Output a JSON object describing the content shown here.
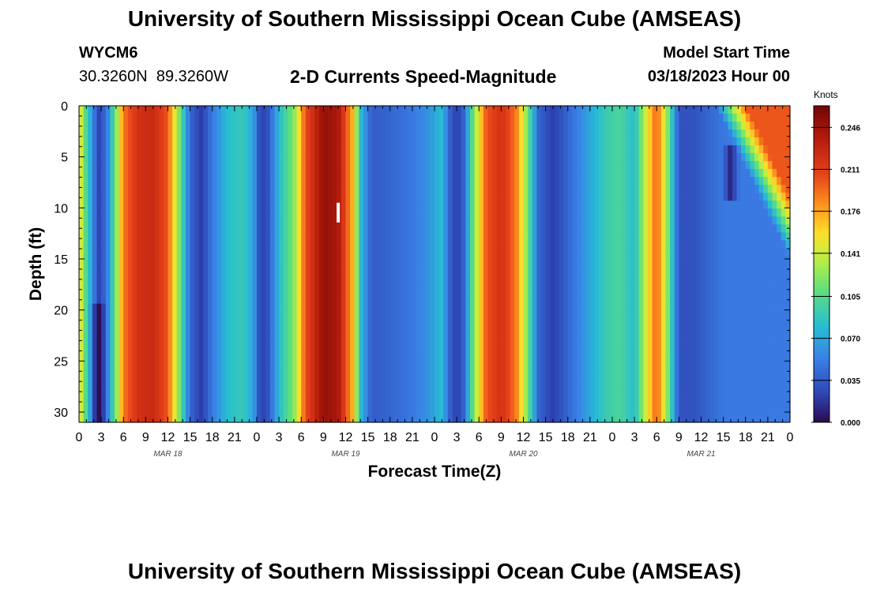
{
  "header": {
    "title": "University of Southern Mississippi Ocean Cube (AMSEAS)",
    "station": "WYCM6",
    "lat": "30.3260N",
    "lon": "89.3260W",
    "subtitle": "2-D Currents Speed-Magnitude",
    "model_start_label": "Model Start Time",
    "model_start_value": "03/18/2023 Hour 00"
  },
  "footer": {
    "title": "University of Southern Mississippi Ocean Cube (AMSEAS)"
  },
  "chart_data": {
    "type": "heatmap",
    "title": "2-D Currents Speed-Magnitude",
    "xlabel": "Forecast Time(Z)",
    "ylabel": "Depth (ft)",
    "x_unit": "forecast hours",
    "xlim": [
      0,
      96
    ],
    "ylim": [
      0,
      31
    ],
    "y_inverted": true,
    "x_tick_values": [
      0,
      3,
      6,
      9,
      12,
      15,
      18,
      21,
      24,
      27,
      30,
      33,
      36,
      39,
      42,
      45,
      48,
      51,
      54,
      57,
      60,
      63,
      66,
      69,
      72,
      75,
      78,
      81,
      84,
      87,
      90,
      93,
      96
    ],
    "x_tick_labels": [
      "0",
      "3",
      "6",
      "9",
      "12",
      "15",
      "18",
      "21",
      "0",
      "3",
      "6",
      "9",
      "12",
      "15",
      "18",
      "21",
      "0",
      "3",
      "6",
      "9",
      "12",
      "15",
      "18",
      "21",
      "0",
      "3",
      "6",
      "9",
      "12",
      "15",
      "18",
      "21",
      "0"
    ],
    "y_ticks": [
      0,
      5,
      10,
      15,
      20,
      25,
      30
    ],
    "day_labels": [
      {
        "hour": 12,
        "label": "MAR 18"
      },
      {
        "hour": 36,
        "label": "MAR 19"
      },
      {
        "hour": 60,
        "label": "MAR 20"
      },
      {
        "hour": 84,
        "label": "MAR 21"
      }
    ],
    "colorbar": {
      "unit": "Knots",
      "min": 0.0,
      "max": 0.264,
      "ticks": [
        "0.246",
        "0.211",
        "0.176",
        "0.141",
        "0.105",
        "0.070",
        "0.035",
        "0.000"
      ]
    },
    "speed_profile_knots": [
      {
        "hour": 0,
        "value": 0.16
      },
      {
        "hour": 1,
        "value": 0.1
      },
      {
        "hour": 2,
        "value": 0.05
      },
      {
        "hour": 2.8,
        "value": 0.02
      },
      {
        "hour": 4,
        "value": 0.06
      },
      {
        "hour": 5,
        "value": 0.12
      },
      {
        "hour": 6,
        "value": 0.19
      },
      {
        "hour": 8,
        "value": 0.22
      },
      {
        "hour": 10,
        "value": 0.225
      },
      {
        "hour": 12,
        "value": 0.2
      },
      {
        "hour": 13.5,
        "value": 0.12
      },
      {
        "hour": 15,
        "value": 0.04
      },
      {
        "hour": 16.5,
        "value": 0.02
      },
      {
        "hour": 18,
        "value": 0.05
      },
      {
        "hour": 20,
        "value": 0.08
      },
      {
        "hour": 22,
        "value": 0.09
      },
      {
        "hour": 23.5,
        "value": 0.07
      },
      {
        "hour": 24.5,
        "value": 0.02
      },
      {
        "hour": 25.5,
        "value": 0.03
      },
      {
        "hour": 27,
        "value": 0.08
      },
      {
        "hour": 29,
        "value": 0.12
      },
      {
        "hour": 30.5,
        "value": 0.2
      },
      {
        "hour": 33,
        "value": 0.25
      },
      {
        "hour": 35,
        "value": 0.24
      },
      {
        "hour": 37,
        "value": 0.17
      },
      {
        "hour": 38,
        "value": 0.08
      },
      {
        "hour": 39.5,
        "value": 0.035
      },
      {
        "hour": 42,
        "value": 0.04
      },
      {
        "hour": 45,
        "value": 0.05
      },
      {
        "hour": 47,
        "value": 0.06
      },
      {
        "hour": 49,
        "value": 0.08
      },
      {
        "hour": 50,
        "value": 0.04
      },
      {
        "hour": 51,
        "value": 0.02
      },
      {
        "hour": 52,
        "value": 0.04
      },
      {
        "hour": 53.5,
        "value": 0.13
      },
      {
        "hour": 55,
        "value": 0.2
      },
      {
        "hour": 57,
        "value": 0.22
      },
      {
        "hour": 59,
        "value": 0.19
      },
      {
        "hour": 60.5,
        "value": 0.12
      },
      {
        "hour": 62,
        "value": 0.04
      },
      {
        "hour": 64,
        "value": 0.02
      },
      {
        "hour": 66,
        "value": 0.04
      },
      {
        "hour": 68,
        "value": 0.06
      },
      {
        "hour": 71,
        "value": 0.09
      },
      {
        "hour": 73,
        "value": 0.1
      },
      {
        "hour": 75,
        "value": 0.08
      },
      {
        "hour": 76.5,
        "value": 0.14
      },
      {
        "hour": 78,
        "value": 0.2
      },
      {
        "hour": 79.5,
        "value": 0.12
      },
      {
        "hour": 81,
        "value": 0.03
      },
      {
        "hour": 83,
        "value": 0.03
      },
      {
        "hour": 85,
        "value": 0.04
      },
      {
        "hour": 87,
        "value": 0.05
      },
      {
        "hour": 90,
        "value": 0.05
      },
      {
        "hour": 93,
        "value": 0.05
      },
      {
        "hour": 96,
        "value": 0.05
      }
    ],
    "surface_feature": {
      "start_hour": 86,
      "end_hour": 96,
      "max_depth_ft": 15,
      "peak_value": 0.2
    },
    "low_spots": [
      {
        "hour": 2.6,
        "depth_from": 19,
        "depth_to": 31,
        "value": 0.0
      },
      {
        "hour": 88,
        "depth_from": 4,
        "depth_to": 9,
        "value": 0.008
      }
    ],
    "marker": {
      "hour": 35,
      "depth_ft": 10.5
    }
  }
}
